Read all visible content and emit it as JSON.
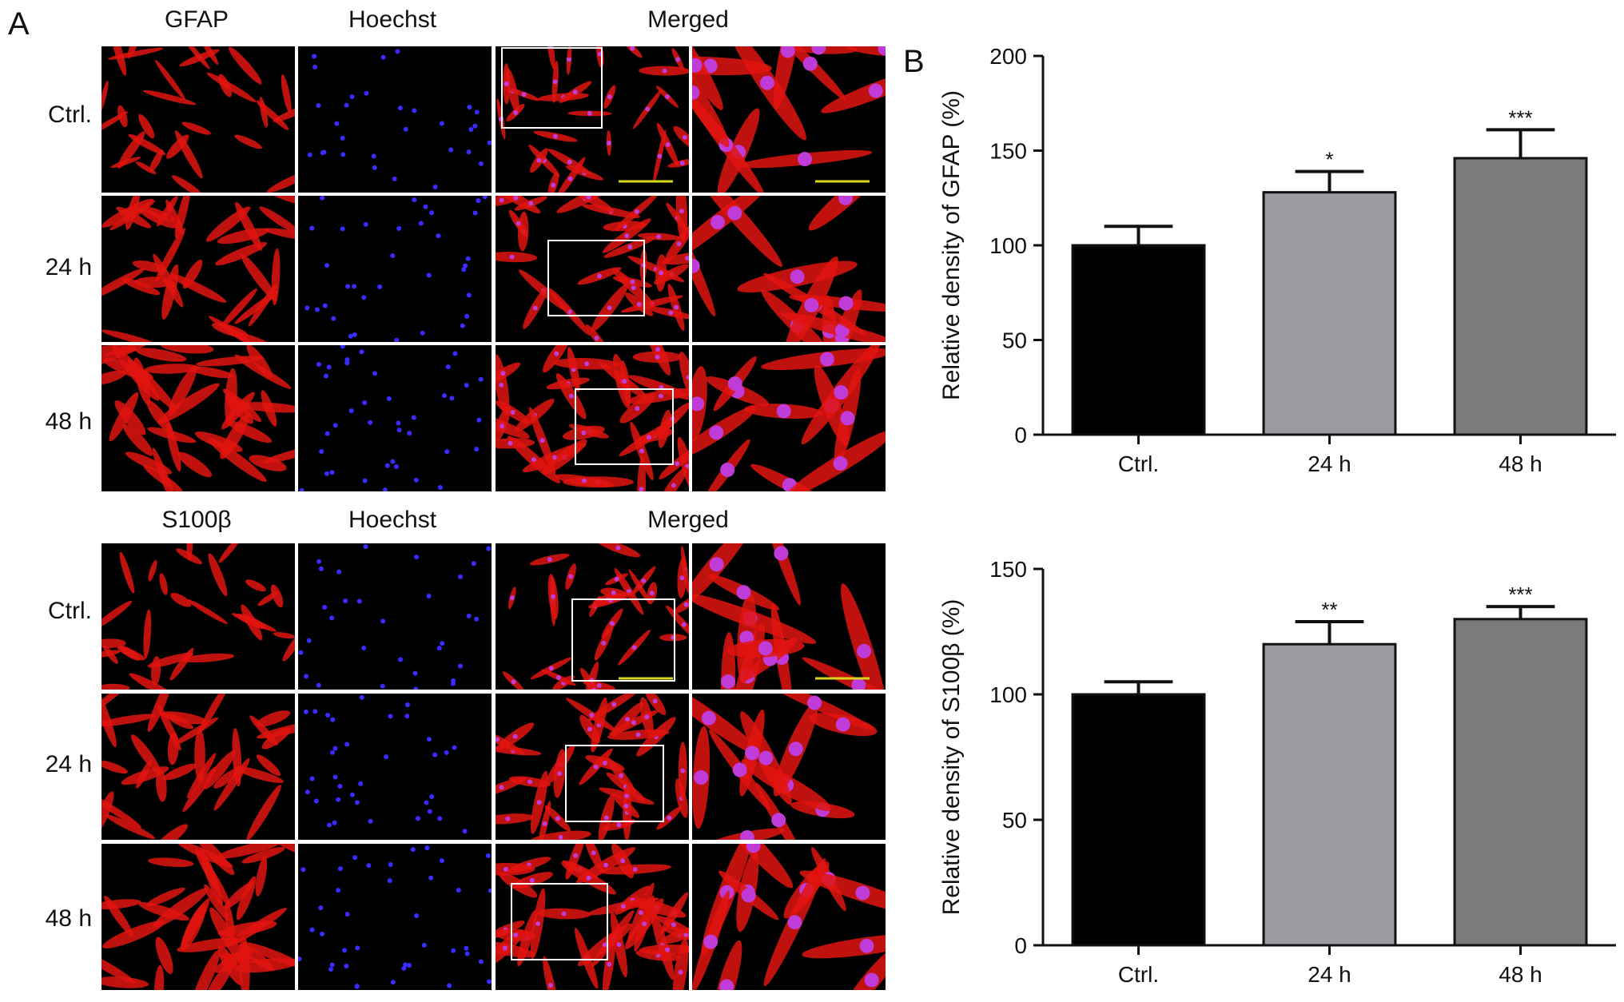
{
  "figure": {
    "panel_a_label": "A",
    "panel_b_label": "B",
    "gfap_block": {
      "columns": [
        "GFAP",
        "Hoechst",
        "Merged"
      ],
      "rows": [
        "Ctrl.",
        "24 h",
        "48 h"
      ]
    },
    "s100_block": {
      "columns": [
        "S100β",
        "Hoechst",
        "Merged"
      ],
      "rows": [
        "Ctrl.",
        "24 h",
        "48 h"
      ]
    },
    "colors": {
      "stain_red": "#e0140f",
      "nucleus_blue": "#3a2bff",
      "merged_magenta": "#c03cd8",
      "scale_bar": "#d8d61a",
      "inset_box": "#ffffff"
    }
  },
  "chart_data": [
    {
      "type": "bar",
      "categories": [
        "Ctrl.",
        "24 h",
        "48 h"
      ],
      "values": [
        100,
        128,
        146
      ],
      "errors": [
        10,
        11,
        15
      ],
      "significance": [
        "",
        "*",
        "***"
      ],
      "bar_colors": [
        "#000000",
        "#9a9aa0",
        "#7a7a7a"
      ],
      "xlabel": "",
      "ylabel": "Relative density of GFAP (%)",
      "ylim": [
        0,
        200
      ],
      "yticks": [
        0,
        50,
        100,
        150,
        200
      ],
      "grid": false
    },
    {
      "type": "bar",
      "categories": [
        "Ctrl.",
        "24 h",
        "48 h"
      ],
      "values": [
        100,
        120,
        130
      ],
      "errors": [
        5,
        9,
        5
      ],
      "significance": [
        "",
        "**",
        "***"
      ],
      "bar_colors": [
        "#000000",
        "#9a9aa0",
        "#7a7a7a"
      ],
      "xlabel": "",
      "ylabel": "Relative density of S100β (%)",
      "ylim": [
        0,
        150
      ],
      "yticks": [
        0,
        50,
        100,
        150
      ],
      "grid": false
    }
  ]
}
